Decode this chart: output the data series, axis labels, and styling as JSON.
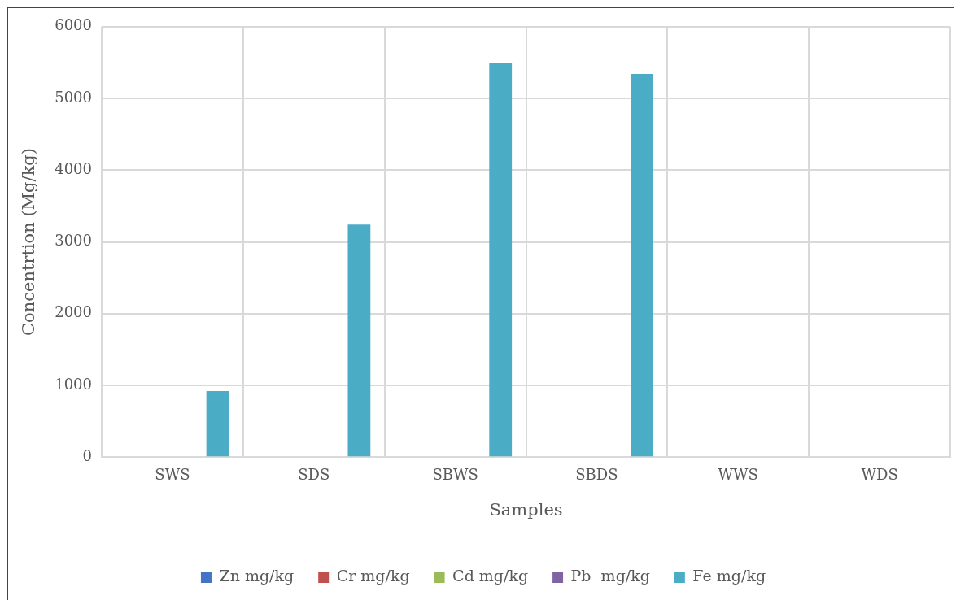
{
  "chart_data": {
    "type": "bar",
    "xlabel": "Samples",
    "ylabel": "Concentrtion (Mg/kg)",
    "categories": [
      "SWS",
      "SDS",
      "SBWS",
      "SBDS",
      "WWS",
      "WDS"
    ],
    "series": [
      {
        "name": "Zn mg/kg",
        "color": "#4472c4",
        "values": [
          0,
          0,
          0,
          0,
          0,
          0
        ]
      },
      {
        "name": "Cr mg/kg",
        "color": "#c0504d",
        "values": [
          0,
          0,
          0,
          0,
          0,
          0
        ]
      },
      {
        "name": "Cd mg/kg",
        "color": "#9bbb59",
        "values": [
          0,
          0,
          0,
          0,
          0,
          0
        ]
      },
      {
        "name": "Pb  mg/kg",
        "color": "#8064a2",
        "values": [
          0,
          0,
          0,
          0,
          0,
          0
        ]
      },
      {
        "name": "Fe mg/kg",
        "color": "#4bacc6",
        "values": [
          920,
          3240,
          5490,
          5340,
          0,
          0
        ]
      }
    ],
    "ylim": [
      0,
      6000
    ],
    "yticks": [
      0,
      1000,
      2000,
      3000,
      4000,
      5000,
      6000
    ],
    "grid": true,
    "legend": "bottom"
  }
}
